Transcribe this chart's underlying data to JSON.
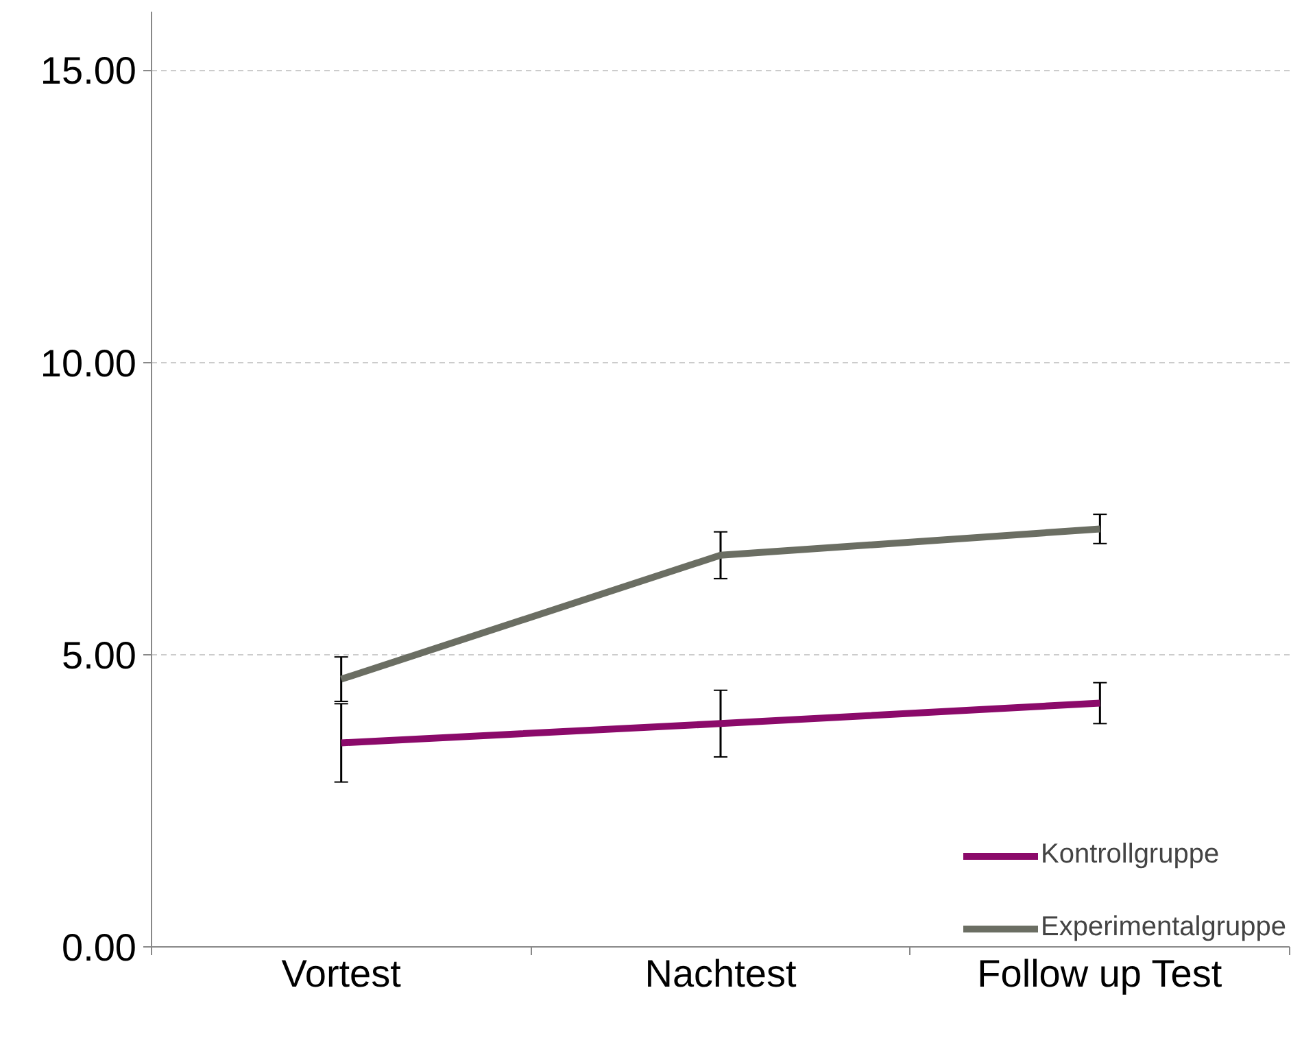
{
  "chart_data": {
    "type": "line",
    "categories": [
      "Vortest",
      "Nachtest",
      "Follow up Test"
    ],
    "series": [
      {
        "name": "Kontrollgruppe",
        "color": "#8b0a6a",
        "values": [
          3.49,
          3.82,
          4.17
        ],
        "errors": [
          0.67,
          0.57,
          0.35
        ]
      },
      {
        "name": "Experimentalgruppe",
        "color": "#6b6e63",
        "values": [
          4.58,
          6.7,
          7.15
        ],
        "errors": [
          0.38,
          0.4,
          0.25
        ]
      }
    ],
    "ylim": [
      0,
      16
    ],
    "yticks": [
      {
        "value": 0,
        "label": "0.00"
      },
      {
        "value": 5,
        "label": "5.00"
      },
      {
        "value": 10,
        "label": "10.00"
      },
      {
        "value": 15,
        "label": "15.00"
      }
    ],
    "grid": "y",
    "legend": "bottom right",
    "marker": "none",
    "line_style": "solid"
  }
}
